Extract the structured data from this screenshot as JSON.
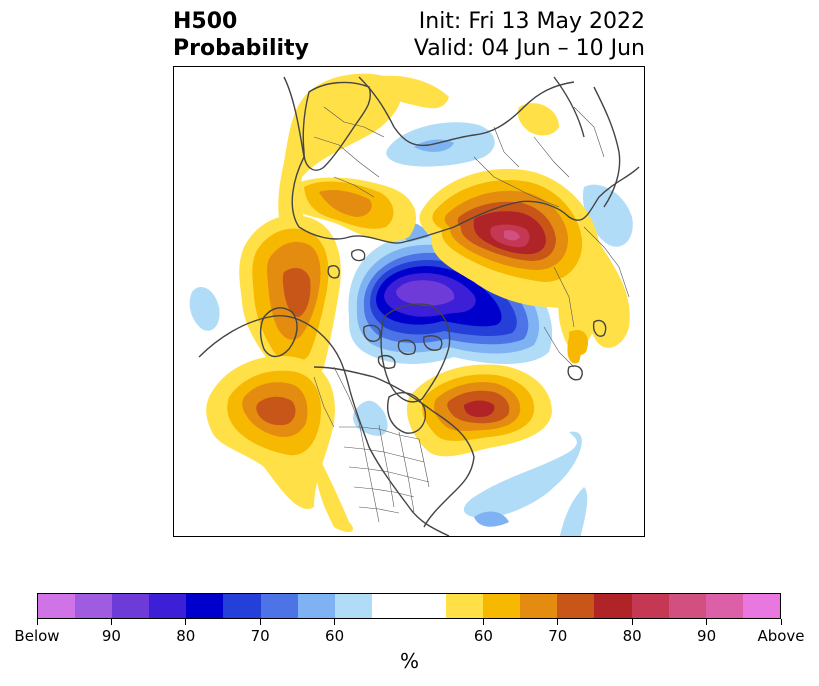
{
  "header": {
    "variable": "H500",
    "product": "Probability",
    "init": "Init: Fri 13 May 2022",
    "valid": "Valid: 04 Jun – 10 Jun"
  },
  "map": {
    "projection": "north-polar-stereographic",
    "features": [
      "coastlines",
      "country-borders",
      "us-state-borders"
    ],
    "anomalies": [
      {
        "region": "Arctic Ocean / Canadian Arctic",
        "sign": "below",
        "max_pct": 90
      },
      {
        "region": "Western Russia",
        "sign": "above",
        "max_pct": 90
      },
      {
        "region": "Eastern Canada / Quebec",
        "sign": "above",
        "max_pct": 80
      },
      {
        "region": "Alaska / Gulf of Alaska",
        "sign": "above",
        "max_pct": 70
      },
      {
        "region": "Northeast Pacific",
        "sign": "above",
        "max_pct": 70
      },
      {
        "region": "Scandinavia / Baltic",
        "sign": "above",
        "max_pct": 60
      },
      {
        "region": "North Atlantic",
        "sign": "above",
        "max_pct": 60
      },
      {
        "region": "Central Siberia",
        "sign": "below",
        "max_pct": 60
      },
      {
        "region": "Southeast United States",
        "sign": "below",
        "max_pct": 60
      }
    ]
  },
  "colorbar": {
    "unit": "%",
    "ticks": [
      "Below",
      "90",
      "80",
      "70",
      "60",
      "60",
      "70",
      "80",
      "90",
      "Above"
    ],
    "colors": [
      "#d073e6",
      "#a05ce0",
      "#6e3ad8",
      "#3c1fd6",
      "#0000cc",
      "#2440d9",
      "#4c74e6",
      "#7eb2f2",
      "#b0dcf8",
      "#ffffff",
      "#ffffff",
      "#ffe047",
      "#f6b800",
      "#e48c10",
      "#c85618",
      "#b02428",
      "#c43854",
      "#d25080",
      "#dc60a8",
      "#e878e0"
    ]
  }
}
